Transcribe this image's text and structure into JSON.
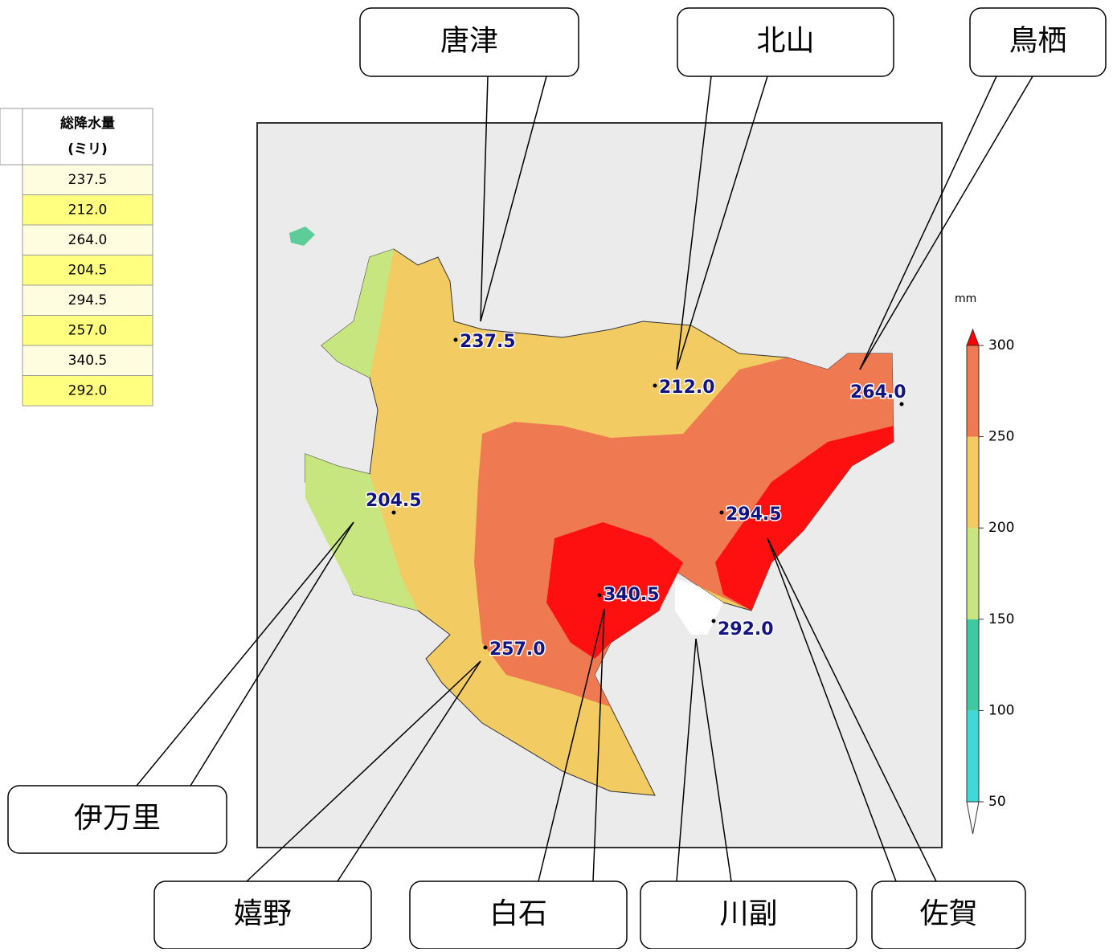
{
  "table": {
    "header": [
      "総降水量",
      "(ミリ)"
    ]
  },
  "stations": [
    {
      "name": "唐津",
      "value": "237.5"
    },
    {
      "name": "北山",
      "value": "212.0"
    },
    {
      "name": "鳥栖",
      "value": "264.0"
    },
    {
      "name": "伊万里",
      "value": "204.5"
    },
    {
      "name": "佐賀",
      "value": "294.5"
    },
    {
      "name": "嬉野",
      "value": "257.0"
    },
    {
      "name": "白石",
      "value": "340.5"
    },
    {
      "name": "川副",
      "value": "292.0"
    }
  ],
  "colorbar": {
    "unit": "mm",
    "ticks": [
      50,
      100,
      150,
      200,
      250,
      300
    ],
    "colors": [
      "#40d8d8",
      "#40c8a0",
      "#c8e680",
      "#f2cc62",
      "#ef7950"
    ],
    "over_color": "#ff0000",
    "under_color": "#ffffff"
  }
}
